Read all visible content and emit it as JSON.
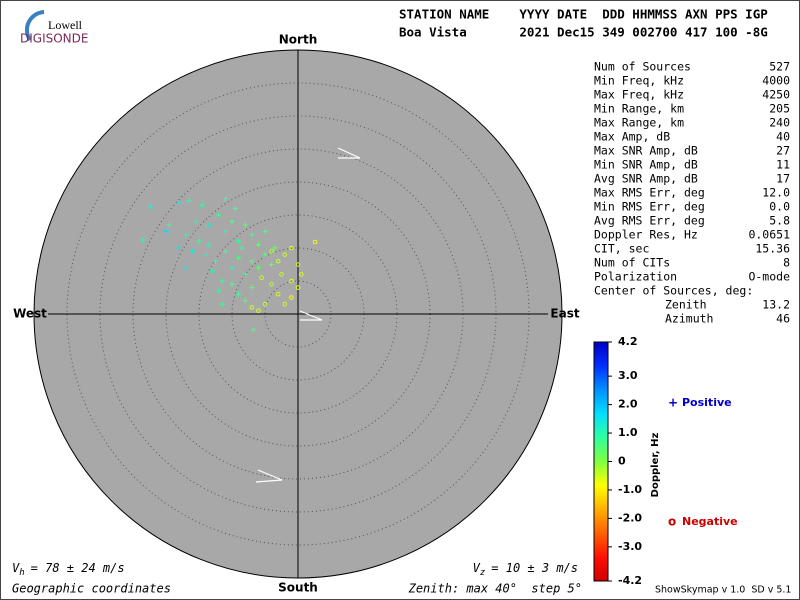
{
  "logo": {
    "name": "Lowell",
    "brand": "DIGISONDE"
  },
  "header": {
    "columns": "STATION NAME    YYYY DATE  DDD HHMMSS AXN PPS IGP",
    "values": "Boa Vista       2021 Dec15 349 002700 417 100 -8G"
  },
  "stats": {
    "rows": [
      [
        "Num of Sources",
        527
      ],
      [
        "Min Freq, kHz",
        4000
      ],
      [
        "Max Freq, kHz",
        4250
      ],
      [
        "Min Range, km",
        205
      ],
      [
        "Max Range, km",
        240
      ],
      [
        "Max Amp, dB",
        40
      ],
      [
        "Max SNR Amp, dB",
        27
      ],
      [
        "Min SNR Amp, dB",
        11
      ],
      [
        "Avg SNR Amp, dB",
        17
      ],
      [
        "Max RMS Err, deg",
        "12.0"
      ],
      [
        "Min RMS Err, deg",
        "0.0"
      ],
      [
        "Avg RMS Err, deg",
        5.8
      ],
      [
        "Doppler Res, Hz",
        0.0651
      ],
      [
        "CIT, sec",
        15.36
      ],
      [
        "Num of CITs",
        8
      ],
      [
        "Polarization",
        "O-mode"
      ]
    ],
    "center": {
      "title": "Center of Sources, deg:",
      "rows": [
        [
          "Zenith",
          13.2
        ],
        [
          "Azimuth",
          46
        ]
      ]
    }
  },
  "chart_data": {
    "type": "skymap",
    "compass": {
      "north": "North",
      "south": "South",
      "west": "West",
      "east": "East"
    },
    "rings": {
      "max": 40,
      "step": 5
    },
    "points": {
      "east": [
        -22.4,
        -23.5,
        -19.5,
        -18,
        -16.5,
        -14.5,
        -17,
        -15,
        -13.5,
        -12,
        -11,
        -10,
        -9,
        -8,
        -7,
        -6,
        -5,
        -14,
        -12.5,
        -11,
        -10,
        -9,
        -8,
        -7,
        -6,
        -5,
        -4,
        -13,
        -11.5,
        -10,
        -9,
        -12,
        -8,
        -7,
        -17,
        -16,
        -18,
        -20,
        -6.8,
        -11.5,
        -13.5,
        -15.5,
        -9.5,
        -11,
        -8.5,
        -3.5,
        -3,
        -2,
        -1,
        2.6,
        0,
        -2.5,
        -4,
        -1,
        0,
        -3,
        -5,
        -6,
        -2,
        -1,
        -4,
        0.5,
        -7,
        -5.5
      ],
      "north": [
        16.2,
        11.2,
        13.5,
        16.8,
        17.2,
        16.5,
        12,
        11,
        13.5,
        15,
        12.5,
        14,
        11,
        13.5,
        12,
        10.5,
        12.5,
        9,
        8,
        9.5,
        7,
        8.5,
        6,
        8,
        7,
        9,
        7.5,
        6.5,
        5,
        4.5,
        3,
        3.5,
        2,
        4,
        7,
        9.5,
        10,
        12.5,
        -2.4,
        1.5,
        10.5,
        14,
        16,
        17.5,
        10,
        10,
        8,
        9,
        10,
        10.9,
        7.5,
        6,
        4.5,
        5,
        4,
        3,
        1.5,
        0.5,
        1.5,
        2.5,
        9.5,
        6,
        1,
        5.5
      ],
      "doppler": [
        1.2,
        1.0,
        0.8,
        1.4,
        1.0,
        0.9,
        1.1,
        0.7,
        1.3,
        0.8,
        1.0,
        0.6,
        0.9,
        0.5,
        0.7,
        0.4,
        0.6,
        1.2,
        0.9,
        0.8,
        1.0,
        0.6,
        0.7,
        0.5,
        0.4,
        0.5,
        0.3,
        1.1,
        0.8,
        0.6,
        0.7,
        0.9,
        0.5,
        0.4,
        1.5,
        1.3,
        1.6,
        1.7,
        0.6,
        0.8,
        1.0,
        1.1,
        0.7,
        0.9,
        0.8,
        0.3,
        -0.4,
        -0.5,
        -0.6,
        -0.7,
        -0.5,
        -0.4,
        -0.3,
        -0.6,
        -0.7,
        -0.5,
        -0.4,
        -0.6,
        -0.5,
        -0.8,
        -0.3,
        -0.6,
        -0.5,
        -0.4
      ]
    },
    "colorbar": {
      "label": "Doppler, Hz",
      "ylim": [
        -4.2,
        4.2
      ],
      "yticks": [
        {
          "value": 4.2,
          "label": "4.2"
        },
        {
          "value": 3,
          "label": "3.0"
        },
        {
          "value": 2,
          "label": "2.0"
        },
        {
          "value": 1,
          "label": "1.0"
        },
        0,
        {
          "value": -1,
          "label": "-1.0"
        },
        {
          "value": -2,
          "label": "-2.0"
        },
        {
          "value": -3,
          "label": "-3.0"
        },
        {
          "value": -4.2,
          "label": "-4.2"
        }
      ],
      "colors": [
        "#0000c8",
        "#0030ff",
        "#0090ff",
        "#00e0ff",
        "#30ffa0",
        "#80ff40",
        "#ffff00",
        "#ffb000",
        "#ff6000",
        "#ff1000",
        "#d00000"
      ]
    },
    "legend": {
      "positive": {
        "symbol": "+",
        "label": "Positive",
        "color": "#0000cc"
      },
      "negative": {
        "symbol": "o",
        "label": "Negative",
        "color": "#cc0000"
      }
    }
  },
  "footer": {
    "vh": {
      "symbol": "V",
      "sub": "h",
      "text": "= 78 ± 24 m/s"
    },
    "vz": {
      "symbol": "V",
      "sub": "z",
      "text": "= 10 ± 3 m/s"
    },
    "coords": "Geographic coordinates",
    "zenith": "Zenith: max 40°  step 5°",
    "version": "ShowSkymap v 1.0  SD v 5.1"
  }
}
